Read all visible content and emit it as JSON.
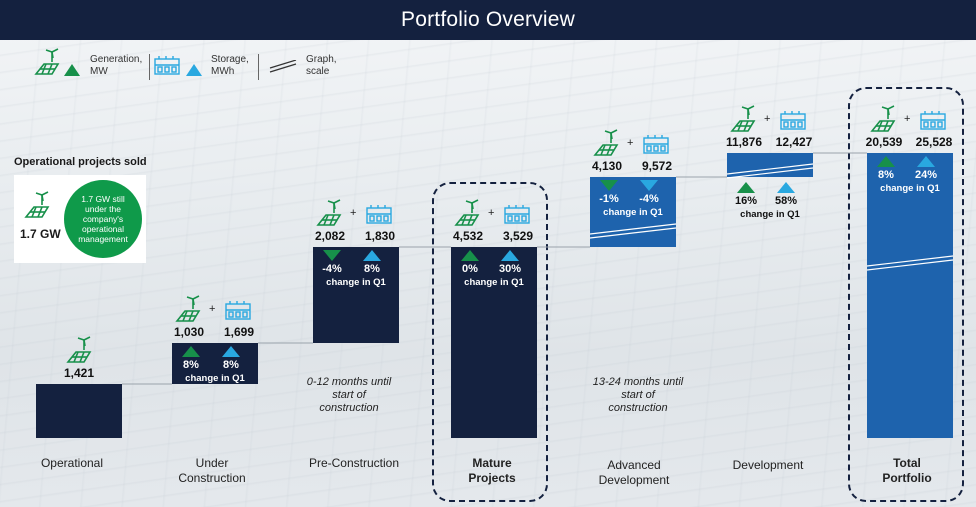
{
  "title": "Portfolio Overview",
  "legend": {
    "generation": "Generation,\nMW",
    "storage": "Storage,\nMWh",
    "graph": "Graph,\nscale"
  },
  "colors": {
    "navy": "#14213f",
    "blue": "#1e63ad",
    "green": "#17904a",
    "light_blue": "#29a8e0",
    "connector": "#9aa3ab"
  },
  "icons": {
    "generation": "solar-wind-icon",
    "storage": "battery-storage-icon"
  },
  "sold": {
    "title": "Operational projects sold",
    "gw": "1.7 GW",
    "note": "1.7 GW still under the company's operational management"
  },
  "chart_data": {
    "type": "bar",
    "categories": [
      "Operational",
      "Under Construction",
      "Pre-Construction",
      "Mature Projects",
      "Advanced Development",
      "Development",
      "Total Portfolio"
    ],
    "generation_mw": [
      1421,
      1030,
      2082,
      4532,
      4130,
      11876,
      20539
    ],
    "storage_mwh": [
      null,
      1699,
      1830,
      3529,
      9572,
      12427,
      25528
    ],
    "generation_labels": [
      "1,421",
      "1,030",
      "2,082",
      "4,532",
      "4,130",
      "11,876",
      "20,539"
    ],
    "storage_labels": [
      "",
      "1,699",
      "1,830",
      "3,529",
      "9,572",
      "12,427",
      "25,528"
    ],
    "change_q1_generation": [
      "",
      "8%",
      "-4%",
      "0%",
      "-1%",
      "16%",
      "8%"
    ],
    "change_q1_storage": [
      "",
      "8%",
      "8%",
      "30%",
      "-4%",
      "58%",
      "24%"
    ],
    "change_label": "change in Q1",
    "scale_break": [
      false,
      false,
      false,
      false,
      true,
      true,
      true
    ],
    "notes": [
      "0-12 months until start of construction",
      "13-24 months until start of construction"
    ]
  }
}
